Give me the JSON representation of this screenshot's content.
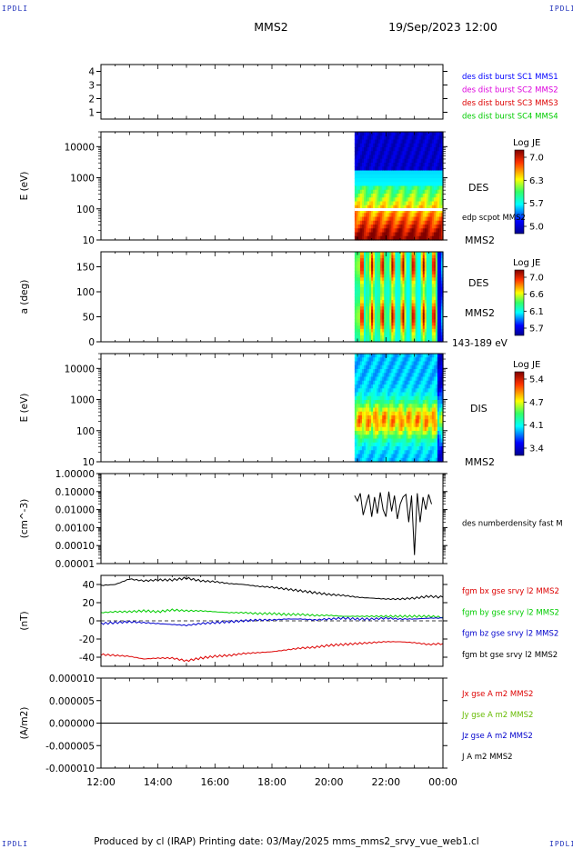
{
  "header": {
    "corner_tl": "IPDLI",
    "corner_tr": "IPDLI",
    "corner_bl": "IPDLI",
    "corner_br": "IPDLI",
    "spacecraft": "MMS2",
    "datetime": "19/Sep/2023 12:00"
  },
  "footer": {
    "text": "Produced by cl (IRAP)   Printing date: 03/May/2025   mms_mms2_srvy_vue_web1.cl"
  },
  "colors": {
    "blue": "#0000ff",
    "magenta": "#dd00dd",
    "red": "#dd0000",
    "green": "#00cc00",
    "black": "#000000"
  },
  "chart_data": [
    {
      "id": "burst",
      "type": "scatter",
      "ylabel": "",
      "ylim": [
        0.5,
        4.5
      ],
      "yticks": [
        "1",
        "2",
        "3",
        "4"
      ],
      "legend": [
        {
          "text": "des dist burst SC1 MMS1",
          "color": "#0000ff"
        },
        {
          "text": "des dist burst SC2 MMS2",
          "color": "#dd00dd"
        },
        {
          "text": "des dist burst SC3 MMS3",
          "color": "#dd0000"
        },
        {
          "text": "des dist burst SC4 MMS4",
          "color": "#00cc00"
        }
      ]
    },
    {
      "id": "des_energy",
      "type": "heatmap",
      "ylabel": "E (eV)",
      "yscale": "log",
      "ylim": [
        10,
        30000
      ],
      "yticks": [
        "10",
        "100",
        "1000",
        "10000"
      ],
      "data_start_hour": 20.9,
      "right_labels": [
        "DES",
        "MMS2"
      ],
      "overlay_label": "edp scpot MMS2",
      "overlay_level_eV": 95,
      "colorbar": {
        "title": "Log JE",
        "ticks": [
          "7.0",
          "6.3",
          "5.7",
          "5.0"
        ],
        "range": [
          5.0,
          7.0
        ]
      }
    },
    {
      "id": "des_pitch",
      "type": "heatmap",
      "ylabel": "a (deg)",
      "ylim": [
        0,
        180
      ],
      "yticks": [
        "0",
        "50",
        "100",
        "150"
      ],
      "data_start_hour": 20.9,
      "right_labels": [
        "DES",
        "MMS2",
        "143-189 eV"
      ],
      "colorbar": {
        "title": "Log JE",
        "ticks": [
          "7.0",
          "6.6",
          "6.1",
          "5.7"
        ],
        "range": [
          5.7,
          7.0
        ]
      }
    },
    {
      "id": "dis_energy",
      "type": "heatmap",
      "ylabel": "E (eV)",
      "yscale": "log",
      "ylim": [
        10,
        30000
      ],
      "yticks": [
        "10",
        "100",
        "1000",
        "10000"
      ],
      "data_start_hour": 20.9,
      "right_labels": [
        "DIS",
        "MMS2"
      ],
      "colorbar": {
        "title": "Log JE",
        "ticks": [
          "5.4",
          "4.7",
          "4.1",
          "3.4"
        ],
        "range": [
          3.4,
          5.4
        ]
      }
    },
    {
      "id": "density",
      "type": "line",
      "ylabel": "(cm^-3)",
      "yscale": "log",
      "ylim": [
        1e-05,
        1.0
      ],
      "yticks": [
        "0.00001",
        "0.00010",
        "0.00100",
        "0.01000",
        "0.10000",
        "1.00000"
      ],
      "series": [
        {
          "name": "des numberdensity fast M",
          "color": "#000000",
          "x": [
            20.9,
            21.0,
            21.1,
            21.2,
            21.3,
            21.4,
            21.5,
            21.6,
            21.7,
            21.8,
            21.9,
            22.0,
            22.1,
            22.2,
            22.3,
            22.4,
            22.5,
            22.6,
            22.7,
            22.8,
            22.9,
            23.0,
            23.1,
            23.2,
            23.3,
            23.4,
            23.5,
            23.6
          ],
          "y": [
            0.06,
            0.03,
            0.08,
            0.005,
            0.02,
            0.07,
            0.004,
            0.05,
            0.006,
            0.09,
            0.01,
            0.004,
            0.1,
            0.008,
            0.06,
            0.003,
            0.02,
            0.05,
            0.07,
            0.002,
            0.06,
            3e-05,
            0.08,
            0.002,
            0.05,
            0.01,
            0.07,
            0.02
          ]
        }
      ]
    },
    {
      "id": "field",
      "type": "line",
      "ylabel": "(nT)",
      "ylim": [
        -50,
        50
      ],
      "yticks": [
        "-40",
        "-20",
        "0",
        "20",
        "40"
      ],
      "zero_line": true,
      "series": [
        {
          "name": "fgm bx gse srvy l2 MMS2",
          "color": "#dd0000",
          "x": [
            12,
            12.5,
            13,
            13.5,
            14,
            14.5,
            15,
            15.5,
            16,
            16.5,
            17,
            17.5,
            18,
            18.5,
            19,
            19.5,
            20,
            20.5,
            21,
            21.5,
            22,
            22.5,
            23,
            23.5,
            24
          ],
          "y": [
            -37,
            -38,
            -39,
            -42,
            -41,
            -41,
            -44,
            -41,
            -39,
            -38,
            -36,
            -35,
            -34,
            -32,
            -30,
            -29,
            -27,
            -26,
            -25,
            -24,
            -23,
            -23,
            -24,
            -26,
            -25
          ]
        },
        {
          "name": "fgm by gse srvy l2 MMS2",
          "color": "#00cc00",
          "x": [
            12,
            12.5,
            13,
            13.5,
            14,
            14.5,
            15,
            15.5,
            16,
            16.5,
            17,
            17.5,
            18,
            18.5,
            19,
            19.5,
            20,
            20.5,
            21,
            21.5,
            22,
            22.5,
            23,
            23.5,
            24
          ],
          "y": [
            9,
            10,
            10,
            11,
            10,
            12,
            11,
            11,
            10,
            9,
            9,
            8,
            8,
            7,
            7,
            6,
            6,
            5,
            5,
            5,
            5,
            5,
            5,
            5,
            4
          ]
        },
        {
          "name": "fgm bz gse srvy l2 MMS2",
          "color": "#0000cc",
          "x": [
            12,
            12.5,
            13,
            13.5,
            14,
            14.5,
            15,
            15.5,
            16,
            16.5,
            17,
            17.5,
            18,
            18.5,
            19,
            19.5,
            20,
            20.5,
            21,
            21.5,
            22,
            22.5,
            23,
            23.5,
            24
          ],
          "y": [
            -3,
            -2,
            -1,
            -2,
            -3,
            -4,
            -5,
            -3,
            -2,
            -1,
            0,
            1,
            1,
            2,
            2,
            1,
            2,
            3,
            2,
            2,
            3,
            2,
            2,
            3,
            3
          ]
        },
        {
          "name": "fgm bt gse srvy l2 MMS2",
          "color": "#000000",
          "x": [
            12,
            12.5,
            13,
            13.5,
            14,
            14.5,
            15,
            15.5,
            16,
            16.5,
            17,
            17.5,
            18,
            18.5,
            19,
            19.5,
            20,
            20.5,
            21,
            21.5,
            22,
            22.5,
            23,
            23.5,
            24
          ],
          "y": [
            39,
            40,
            46,
            44,
            45,
            45,
            47,
            44,
            43,
            41,
            40,
            38,
            37,
            35,
            33,
            31,
            29,
            28,
            26,
            25,
            24,
            24,
            25,
            27,
            26
          ]
        }
      ]
    },
    {
      "id": "current",
      "type": "line",
      "ylabel": "(A/m2)",
      "ylim": [
        -1e-05,
        1e-05
      ],
      "yticks": [
        "-0.000010",
        "-0.000005",
        "0.000000",
        "0.000005",
        "0.000010"
      ],
      "series": [
        {
          "name": "Jx gse A m2 MMS2",
          "color": "#dd0000",
          "x": [
            12,
            24
          ],
          "y": [
            0,
            0
          ]
        },
        {
          "name": "Jy gse A m2 MMS2",
          "color": "#66bb00",
          "x": [
            12,
            24
          ],
          "y": [
            0,
            0
          ]
        },
        {
          "name": "Jz gse A m2 MMS2",
          "color": "#0000cc",
          "x": [
            12,
            24
          ],
          "y": [
            0,
            0
          ]
        },
        {
          "name": "J A m2 MMS2",
          "color": "#000000",
          "x": [
            12,
            24
          ],
          "y": [
            0,
            0
          ]
        }
      ]
    }
  ],
  "time_axis": {
    "xlim": [
      12,
      24
    ],
    "ticks": [
      12,
      14,
      16,
      18,
      20,
      22,
      24
    ],
    "tick_labels": [
      "12:00",
      "14:00",
      "16:00",
      "18:00",
      "20:00",
      "22:00",
      "00:00"
    ]
  }
}
